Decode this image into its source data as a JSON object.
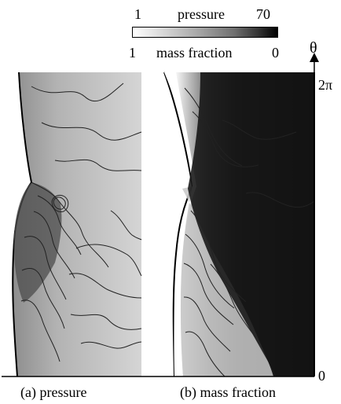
{
  "legend": {
    "top_left": "1",
    "top_center": "pressure",
    "top_right": "70",
    "bottom_left": "1",
    "bottom_center": "mass fraction",
    "bottom_right": "0"
  },
  "axis": {
    "label": "θ",
    "top_tick": "2π",
    "bottom_tick": "0"
  },
  "captions": {
    "left": "(a) pressure",
    "right": "(b) mass fraction"
  },
  "chart_data": {
    "type": "heatmap",
    "panels": [
      {
        "label": "(a) pressure",
        "colorbar_range": [
          1,
          70
        ]
      },
      {
        "label": "(b) mass fraction",
        "colorbar_range": [
          1,
          0
        ]
      }
    ],
    "y_axis": {
      "label": "θ",
      "ticks": [
        "0",
        "2π"
      ]
    },
    "colors": {
      "bright": "#ffffff",
      "mid": "#7a7a7a",
      "dark": "#000000"
    }
  }
}
